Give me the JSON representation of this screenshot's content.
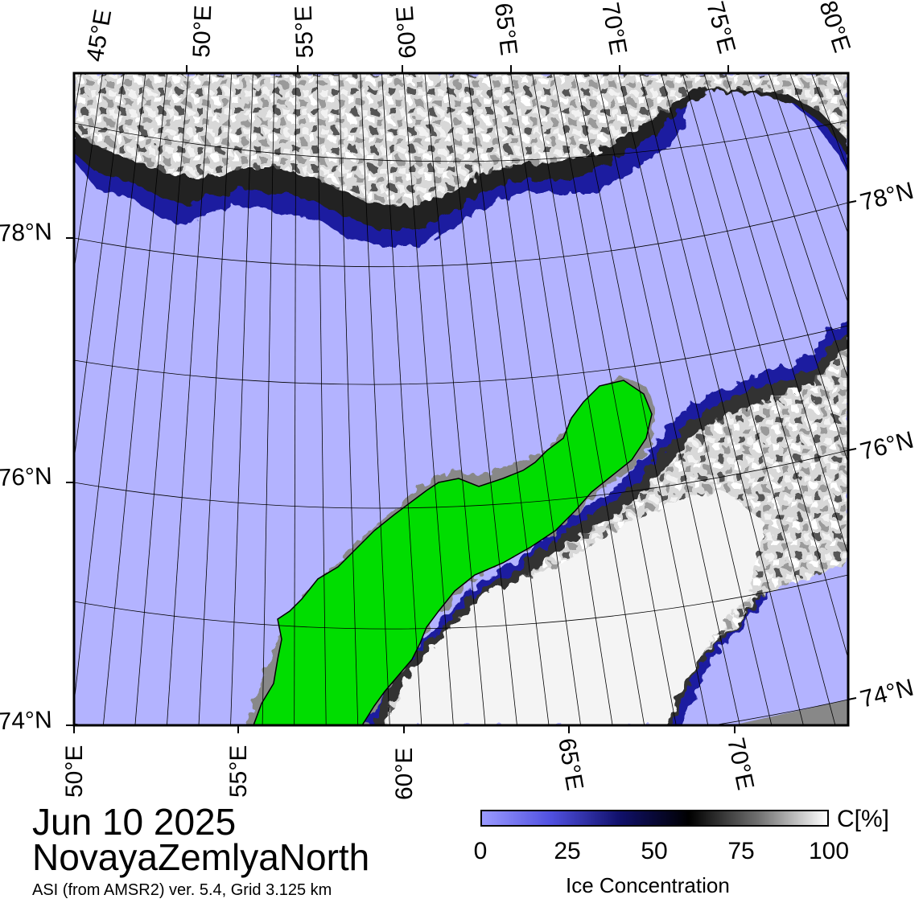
{
  "map": {
    "title_date": "Jun 10 2025",
    "region_name": "NovayaZemlyaNorth",
    "product_info": "ASI (from AMSR2) ver. 5.4,  Grid 3.125 km",
    "top_lon_labels": [
      "45°E",
      "50°E",
      "55°E",
      "60°E",
      "65°E",
      "70°E",
      "75°E",
      "80°E"
    ],
    "bottom_lon_labels": [
      "50°E",
      "55°E",
      "60°E",
      "65°E",
      "70°E"
    ],
    "left_lat_labels": [
      "78°N",
      "76°N",
      "74°N"
    ],
    "right_lat_labels": [
      "78°N",
      "76°N",
      "74°N"
    ],
    "colors": {
      "open_water": "#b3b3ff",
      "land": "#00dd00",
      "coast_mask": "#888888",
      "ice_high": "#ffffff",
      "ice_low": "#000060",
      "frame": "#000000"
    }
  },
  "colorbar": {
    "ticks": [
      "0",
      "25",
      "50",
      "75",
      "100"
    ],
    "unit": "C[%]",
    "title": "Ice Concentration",
    "gradient_colors": [
      "#9a9aff",
      "#5050e0",
      "#10106a",
      "#000000",
      "#707070",
      "#ffffff"
    ]
  }
}
